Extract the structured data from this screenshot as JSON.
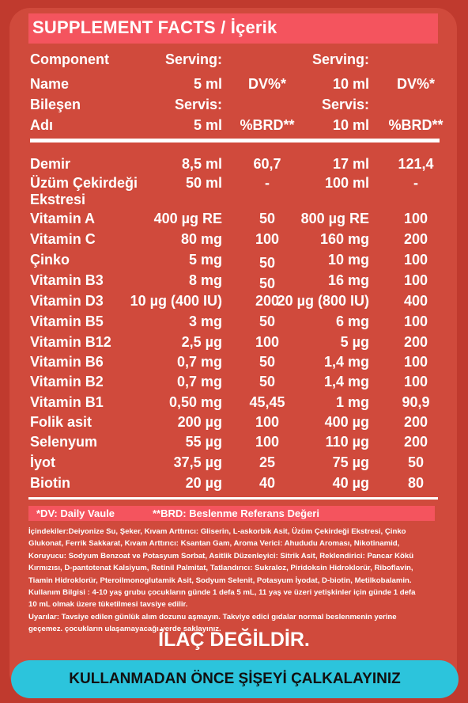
{
  "title": "SUPPLEMENT FACTS / İçerik",
  "header_rows": [
    {
      "name": "Component",
      "s1": "Serving:",
      "s2": "Serving:"
    },
    {
      "name": "Name",
      "s1": "5 ml",
      "dv1": "DV%*",
      "s2": "10 ml",
      "dv2": "DV%*"
    },
    {
      "name": "Bileşen",
      "s1": "Servis:",
      "s2": "Servis:"
    },
    {
      "name": "Adı",
      "s1": "5 ml",
      "dv1": "%BRD**",
      "s2": "10 ml",
      "dv2": "%BRD**"
    }
  ],
  "nutrients": [
    {
      "name": "Demir",
      "s1": "8,5 ml",
      "dv1": "60,7",
      "s2": "17 ml",
      "dv2": "121,4"
    },
    {
      "name": "Üzüm Çekirdeği",
      "name2": "Ekstresi",
      "s1": "50 ml",
      "dv1": "-",
      "s2": "100 ml",
      "dv2": "-"
    },
    {
      "name": "Vitamin A",
      "s1": "400  µg  RE",
      "dv1": "50",
      "s2": "800 µg RE",
      "dv2": "100"
    },
    {
      "name": "Vitamin C",
      "s1": "80 mg",
      "dv1": "100",
      "s2": "160 mg",
      "dv2": "200"
    },
    {
      "name": "Çinko",
      "s1": "5 mg",
      "dv1": "50",
      "s2": "10 mg",
      "dv2": "100"
    },
    {
      "name": "Vitamin B3",
      "s1": "8 mg",
      "dv1": "50",
      "s2": "16 mg",
      "dv2": "100"
    },
    {
      "name": "Vitamin D3",
      "s1": "10 µg (400 IU)",
      "dv1": "200",
      "s2": "20 µg (800 IU)",
      "dv2": "400"
    },
    {
      "name": "Vitamin B5",
      "s1": "3 mg",
      "dv1": "50",
      "s2": "6 mg",
      "dv2": "100"
    },
    {
      "name": "Vitamin B12",
      "s1": "2,5 µg",
      "dv1": "100",
      "s2": "5 µg",
      "dv2": "200"
    },
    {
      "name": "Vitamin B6",
      "s1": "0,7 mg",
      "dv1": "50",
      "s2": "1,4 mg",
      "dv2": "100"
    },
    {
      "name": "Vitamin B2",
      "s1": "0,7 mg",
      "dv1": "50",
      "s2": "1,4 mg",
      "dv2": "100"
    },
    {
      "name": "Vitamin B1",
      "s1": "0,50 mg",
      "dv1": "45,45",
      "s2": "1 mg",
      "dv2": "90,9"
    },
    {
      "name": "Folik asit",
      "s1": "200 µg",
      "dv1": "100",
      "s2": "400 µg",
      "dv2": "200"
    },
    {
      "name": "Selenyum",
      "s1": "55 µg",
      "dv1": "100",
      "s2": "110 µg",
      "dv2": "200"
    },
    {
      "name": "İyot",
      "s1": "37,5 µg",
      "dv1": "25",
      "s2": "75 µg",
      "dv2": "50"
    },
    {
      "name": "Biotin",
      "s1": "20 µg",
      "dv1": "40",
      "s2": "40 µg",
      "dv2": "80"
    }
  ],
  "legend": {
    "dv": "*DV: Daily Vaule",
    "brd": "**BRD: Beslenme Referans Değeri"
  },
  "ingredients_lines": [
    "İçindekiler:Deiyonize Su, Şeker, Kıvam Arttırıcı: Gliserin, L-askorbik Asit, Üzüm Çekirdeği Ekstresi, Çinko",
    "Glukonat, Ferrik Sakkarat, Kıvam Arttırıcı: Ksantan Gam, Aroma Verici: Ahududu Aroması, Nikotinamid,",
    "Koruyucu: Sodyum Benzoat ve Potasyum Sorbat, Asitlik Düzenleyici: Sitrik Asit, Reklendirici: Pancar Kökü",
    "Kırmızısı, D-pantotenat Kalsiyum, Retinil Palmitat, Tatlandırıcı: Sukraloz, Piridoksin Hidroklorür, Riboflavin,",
    "Tiamin Hidroklorür, Pteroilmonoglutamik Asit, Sodyum Selenit, Potasyum İyodat, D-biotin, Metilkobalamin.",
    "Kullanım Bilgisi : 4-10 yaş grubu çocukların günde 1 defa 5 mL, 11 yaş ve üzeri yetişkinler için günde 1 defa",
    "10 mL olmak üzere tüketilmesi tavsiye edilir.",
    "Uyarılar: Tavsiye edilen günlük alım dozunu aşmayın. Takviye edici gıdalar normal beslenmenin yerine",
    "geçemez. çocukların ulaşamayacağı yerde saklayınız."
  ],
  "not_drug": "İLAÇ DEĞİLDİR.",
  "shake_banner": "KULLANMADAN ÖNCE ŞİŞEYİ ÇALKALAYINIZ"
}
